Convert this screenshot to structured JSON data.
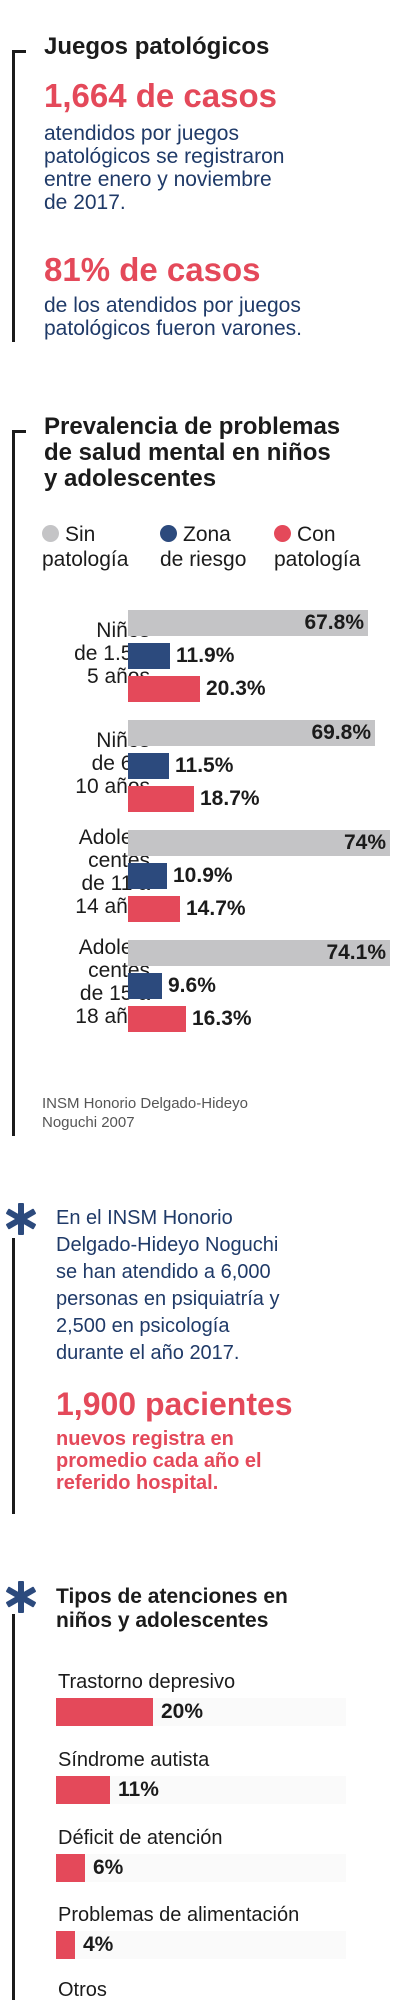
{
  "section1": {
    "title": "Juegos patológicos",
    "stat1_value": "1,664 de casos",
    "stat1_text": [
      "atendidos por juegos",
      "patológicos se registraron",
      "entre enero y noviembre",
      "de 2017."
    ],
    "stat2_value": "81% de casos",
    "stat2_text": [
      "de los atendidos por juegos",
      "patológicos fueron varones."
    ]
  },
  "section2": {
    "title": [
      "Prevalencia de problemas",
      "de salud mental en niños",
      "y adolescentes"
    ],
    "source": [
      "INSM Honorio Delgado-Hideyo",
      "Noguchi 2007"
    ]
  },
  "section3": {
    "text": [
      "En el INSM Honorio",
      "Delgado-Hideyo Noguchi",
      "se han atendido a 6,000",
      "personas en psiquiatría y",
      "2,500 en psicología",
      "durante el año 2017."
    ],
    "stat_value": "1,900 pacientes",
    "stat_text": [
      "nuevos registra en",
      "promedio cada año el",
      "referido hospital."
    ]
  },
  "section4": {
    "title": [
      "Tipos de atenciones en",
      "niños y adolescentes"
    ]
  },
  "colors": {
    "sin_patologia": "#c4c4c6",
    "zona_riesgo": "#2c4a7d",
    "con_patologia": "#e4495a",
    "dark": "#1b1b1b"
  },
  "icons": {
    "divider_marker": "asterisk-icon"
  },
  "chart_data": [
    {
      "type": "bar",
      "orientation": "horizontal",
      "title": "Prevalencia de problemas de salud mental en niños y adolescentes",
      "legend_position": "top",
      "categories": [
        [
          "Niños",
          "de 1.5 a",
          "5 años"
        ],
        [
          "Niños",
          "de 6 a",
          "10 años"
        ],
        [
          "Adoles-",
          "centes",
          "de 11 a",
          "14 años"
        ],
        [
          "Adoles-",
          "centes",
          "de 15 a",
          "18 años"
        ]
      ],
      "series": [
        {
          "name": [
            "Sin",
            "patología"
          ],
          "values": [
            67.8,
            69.8,
            74,
            74.1
          ],
          "labels": [
            "67.8%",
            "69.8%",
            "74%",
            "74.1%"
          ]
        },
        {
          "name": [
            "Zona",
            "de riesgo"
          ],
          "values": [
            11.9,
            11.5,
            10.9,
            9.6
          ],
          "labels": [
            "11.9%",
            "11.5%",
            "10.9%",
            "9.6%"
          ]
        },
        {
          "name": [
            "Con",
            "patología"
          ],
          "values": [
            20.3,
            18.7,
            14.7,
            16.3
          ],
          "labels": [
            "20.3%",
            "18.7%",
            "14.7%",
            "16.3%"
          ]
        }
      ],
      "xlim": [
        0,
        74.1
      ],
      "unit": "%"
    },
    {
      "type": "bar",
      "orientation": "horizontal",
      "title": "Tipos de atenciones en niños y adolescentes",
      "categories": [
        "Trastorno depresivo",
        "Síndrome autista",
        "Déficit de atención",
        "Problemas de alimentación",
        "Otros"
      ],
      "values": [
        20,
        11,
        6,
        4,
        null
      ],
      "labels": [
        "20%",
        "11%",
        "6%",
        "4%",
        ""
      ],
      "xlim": [
        0,
        100
      ],
      "unit": "%"
    }
  ]
}
